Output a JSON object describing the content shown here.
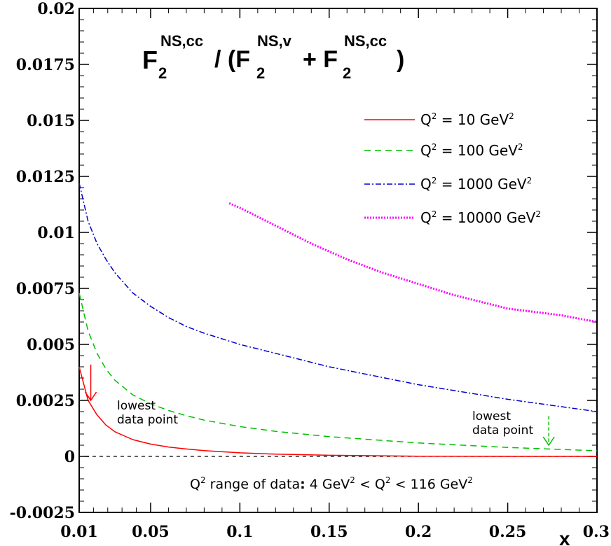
{
  "chart_data": {
    "type": "line",
    "title": {
      "F": "F",
      "sub2": "2",
      "sup_cc": "NS,cc",
      "slash_paren": "/ (F",
      "sup_v": "NS,v",
      "plus": "+ F",
      "close": ")"
    },
    "xlabel": "x",
    "ylabel": "",
    "xlim": [
      0.01,
      0.3
    ],
    "ylim": [
      -0.0025,
      0.02
    ],
    "x_ticks": [
      0.01,
      0.05,
      0.1,
      0.15,
      0.2,
      0.25,
      0.3
    ],
    "x_tick_labels": [
      "0.01",
      "0.05",
      "0.1",
      "0.15",
      "0.2",
      "0.25",
      "0.3"
    ],
    "y_ticks": [
      -0.0025,
      0,
      0.0025,
      0.005,
      0.0075,
      0.01,
      0.0125,
      0.015,
      0.0175,
      0.02
    ],
    "y_tick_labels": [
      "-0.0025",
      "0",
      "0.0025",
      "0.005",
      "0.0075",
      "0.01",
      "0.0125",
      "0.015",
      "0.0175",
      "0.02"
    ],
    "grid": false,
    "legend_position": "top-right",
    "series": [
      {
        "name": "Q² = 10 GeV²",
        "label_q": "Q",
        "label_mid": " = 10 GeV",
        "color": "#ff0000",
        "style": "solid",
        "x": [
          0.01,
          0.015,
          0.02,
          0.025,
          0.03,
          0.04,
          0.05,
          0.06,
          0.07,
          0.08,
          0.1,
          0.12,
          0.15,
          0.2,
          0.25,
          0.3
        ],
        "y": [
          0.004,
          0.0025,
          0.00185,
          0.0014,
          0.0011,
          0.00075,
          0.00055,
          0.00042,
          0.00033,
          0.00026,
          0.00016,
          0.0001,
          5e-05,
          1e-05,
          0.0,
          0.0
        ]
      },
      {
        "name": "Q² = 100 GeV²",
        "label_q": "Q",
        "label_mid": " = 100 GeV",
        "color": "#00c000",
        "style": "dashed",
        "x": [
          0.01,
          0.015,
          0.02,
          0.025,
          0.03,
          0.04,
          0.05,
          0.06,
          0.07,
          0.08,
          0.1,
          0.12,
          0.15,
          0.2,
          0.25,
          0.3
        ],
        "y": [
          0.0073,
          0.0056,
          0.0046,
          0.0039,
          0.0034,
          0.00275,
          0.00235,
          0.00205,
          0.00182,
          0.00162,
          0.00133,
          0.00112,
          0.00088,
          0.0006,
          0.0004,
          0.00025
        ]
      },
      {
        "name": "Q² = 1000 GeV²",
        "label_q": "Q",
        "label_mid": " = 1000 GeV",
        "color": "#0000cc",
        "style": "dashdot",
        "x": [
          0.01,
          0.015,
          0.02,
          0.025,
          0.03,
          0.04,
          0.05,
          0.06,
          0.07,
          0.08,
          0.1,
          0.12,
          0.15,
          0.2,
          0.25,
          0.3
        ],
        "y": [
          0.0122,
          0.0105,
          0.0095,
          0.0088,
          0.0082,
          0.0073,
          0.0067,
          0.0062,
          0.0058,
          0.0055,
          0.005,
          0.0046,
          0.004,
          0.0032,
          0.00255,
          0.002
        ]
      },
      {
        "name": "Q² = 10000 GeV²",
        "label_q": "Q",
        "label_mid": " = 10000 GeV",
        "color": "#ff00ff",
        "style": "dotted",
        "x": [
          0.094,
          0.1,
          0.12,
          0.14,
          0.16,
          0.18,
          0.2,
          0.22,
          0.25,
          0.28,
          0.3
        ],
        "y": [
          0.0113,
          0.0111,
          0.0103,
          0.0095,
          0.0088,
          0.0082,
          0.0077,
          0.0072,
          0.0066,
          0.0063,
          0.006
        ]
      }
    ],
    "annotations": {
      "lowest_left_line1": "lowest",
      "lowest_left_line2": "data point",
      "lowest_right_line1": "lowest",
      "lowest_right_line2": "data point",
      "range_q": "Q",
      "range_mid1": " range of data",
      "range_colon": ":",
      "range_mid2": " 4 GeV",
      "range_lt1": " < Q",
      "range_lt2": " < 116 GeV",
      "sup2": "2",
      "arrow_left_x": 0.0165,
      "arrow_left_from_y": 0.0041,
      "arrow_left_to_y": 0.0025,
      "arrow_right_x": 0.273,
      "arrow_right_from_y": 0.0018,
      "arrow_right_to_y": 0.0005
    }
  }
}
